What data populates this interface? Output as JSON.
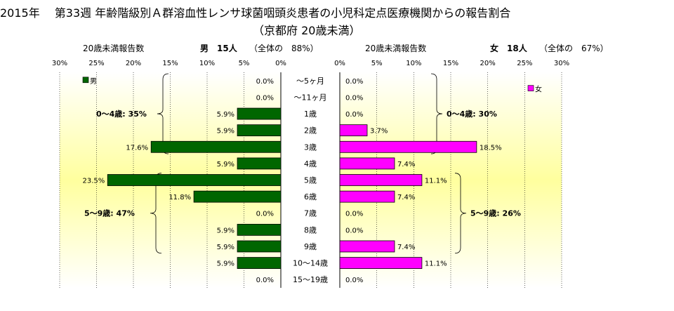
{
  "chart_data": {
    "type": "bar",
    "title": "2015年　 第33週 年齢階級別Ａ群溶血性レンサ球菌咽頭炎患者の小児科定点医療機関からの報告割合",
    "subtitle": "（京都府 20歳未満）",
    "categories": [
      "～5ヶ月",
      "～11ヶ月",
      "1歳",
      "2歳",
      "3歳",
      "4歳",
      "5歳",
      "6歳",
      "7歳",
      "8歳",
      "9歳",
      "10～14歳",
      "15～19歳"
    ],
    "xlim": [
      0,
      30
    ],
    "ticks": [
      "30%",
      "25%",
      "20%",
      "15%",
      "10%",
      "5%",
      "0%"
    ],
    "ticks_right": [
      "0%",
      "5%",
      "10%",
      "15%",
      "20%",
      "25%",
      "30%"
    ],
    "series": [
      {
        "name": "男",
        "header_left": "20歳未満報告数",
        "header_count": "男　15人",
        "header_share": "（全体の　88%）",
        "color": "#006600",
        "values": [
          0.0,
          0.0,
          5.9,
          5.9,
          17.6,
          5.9,
          23.5,
          11.8,
          0.0,
          5.9,
          5.9,
          5.9,
          0.0
        ],
        "labels": [
          "0.0%",
          "0.0%",
          "5.9%",
          "5.9%",
          "17.6%",
          "5.9%",
          "23.5%",
          "11.8%",
          "0.0%",
          "5.9%",
          "5.9%",
          "5.9%",
          "0.0%"
        ],
        "groups": [
          "0～4歳: 35%",
          "5～9歳: 47%"
        ]
      },
      {
        "name": "女",
        "header_left": "20歳未満報告数",
        "header_count": "女　18人",
        "header_share": "（全体の　67%）",
        "color": "#ff00ff",
        "values": [
          0.0,
          0.0,
          0.0,
          3.7,
          18.5,
          7.4,
          11.1,
          7.4,
          0.0,
          0.0,
          7.4,
          11.1,
          0.0
        ],
        "labels": [
          "0.0%",
          "0.0%",
          "0.0%",
          "3.7%",
          "18.5%",
          "7.4%",
          "11.1%",
          "7.4%",
          "0.0%",
          "0.0%",
          "7.4%",
          "11.1%",
          "0.0%"
        ],
        "groups": [
          "0～4歳: 30%",
          "5～9歳: 26%"
        ]
      }
    ]
  }
}
